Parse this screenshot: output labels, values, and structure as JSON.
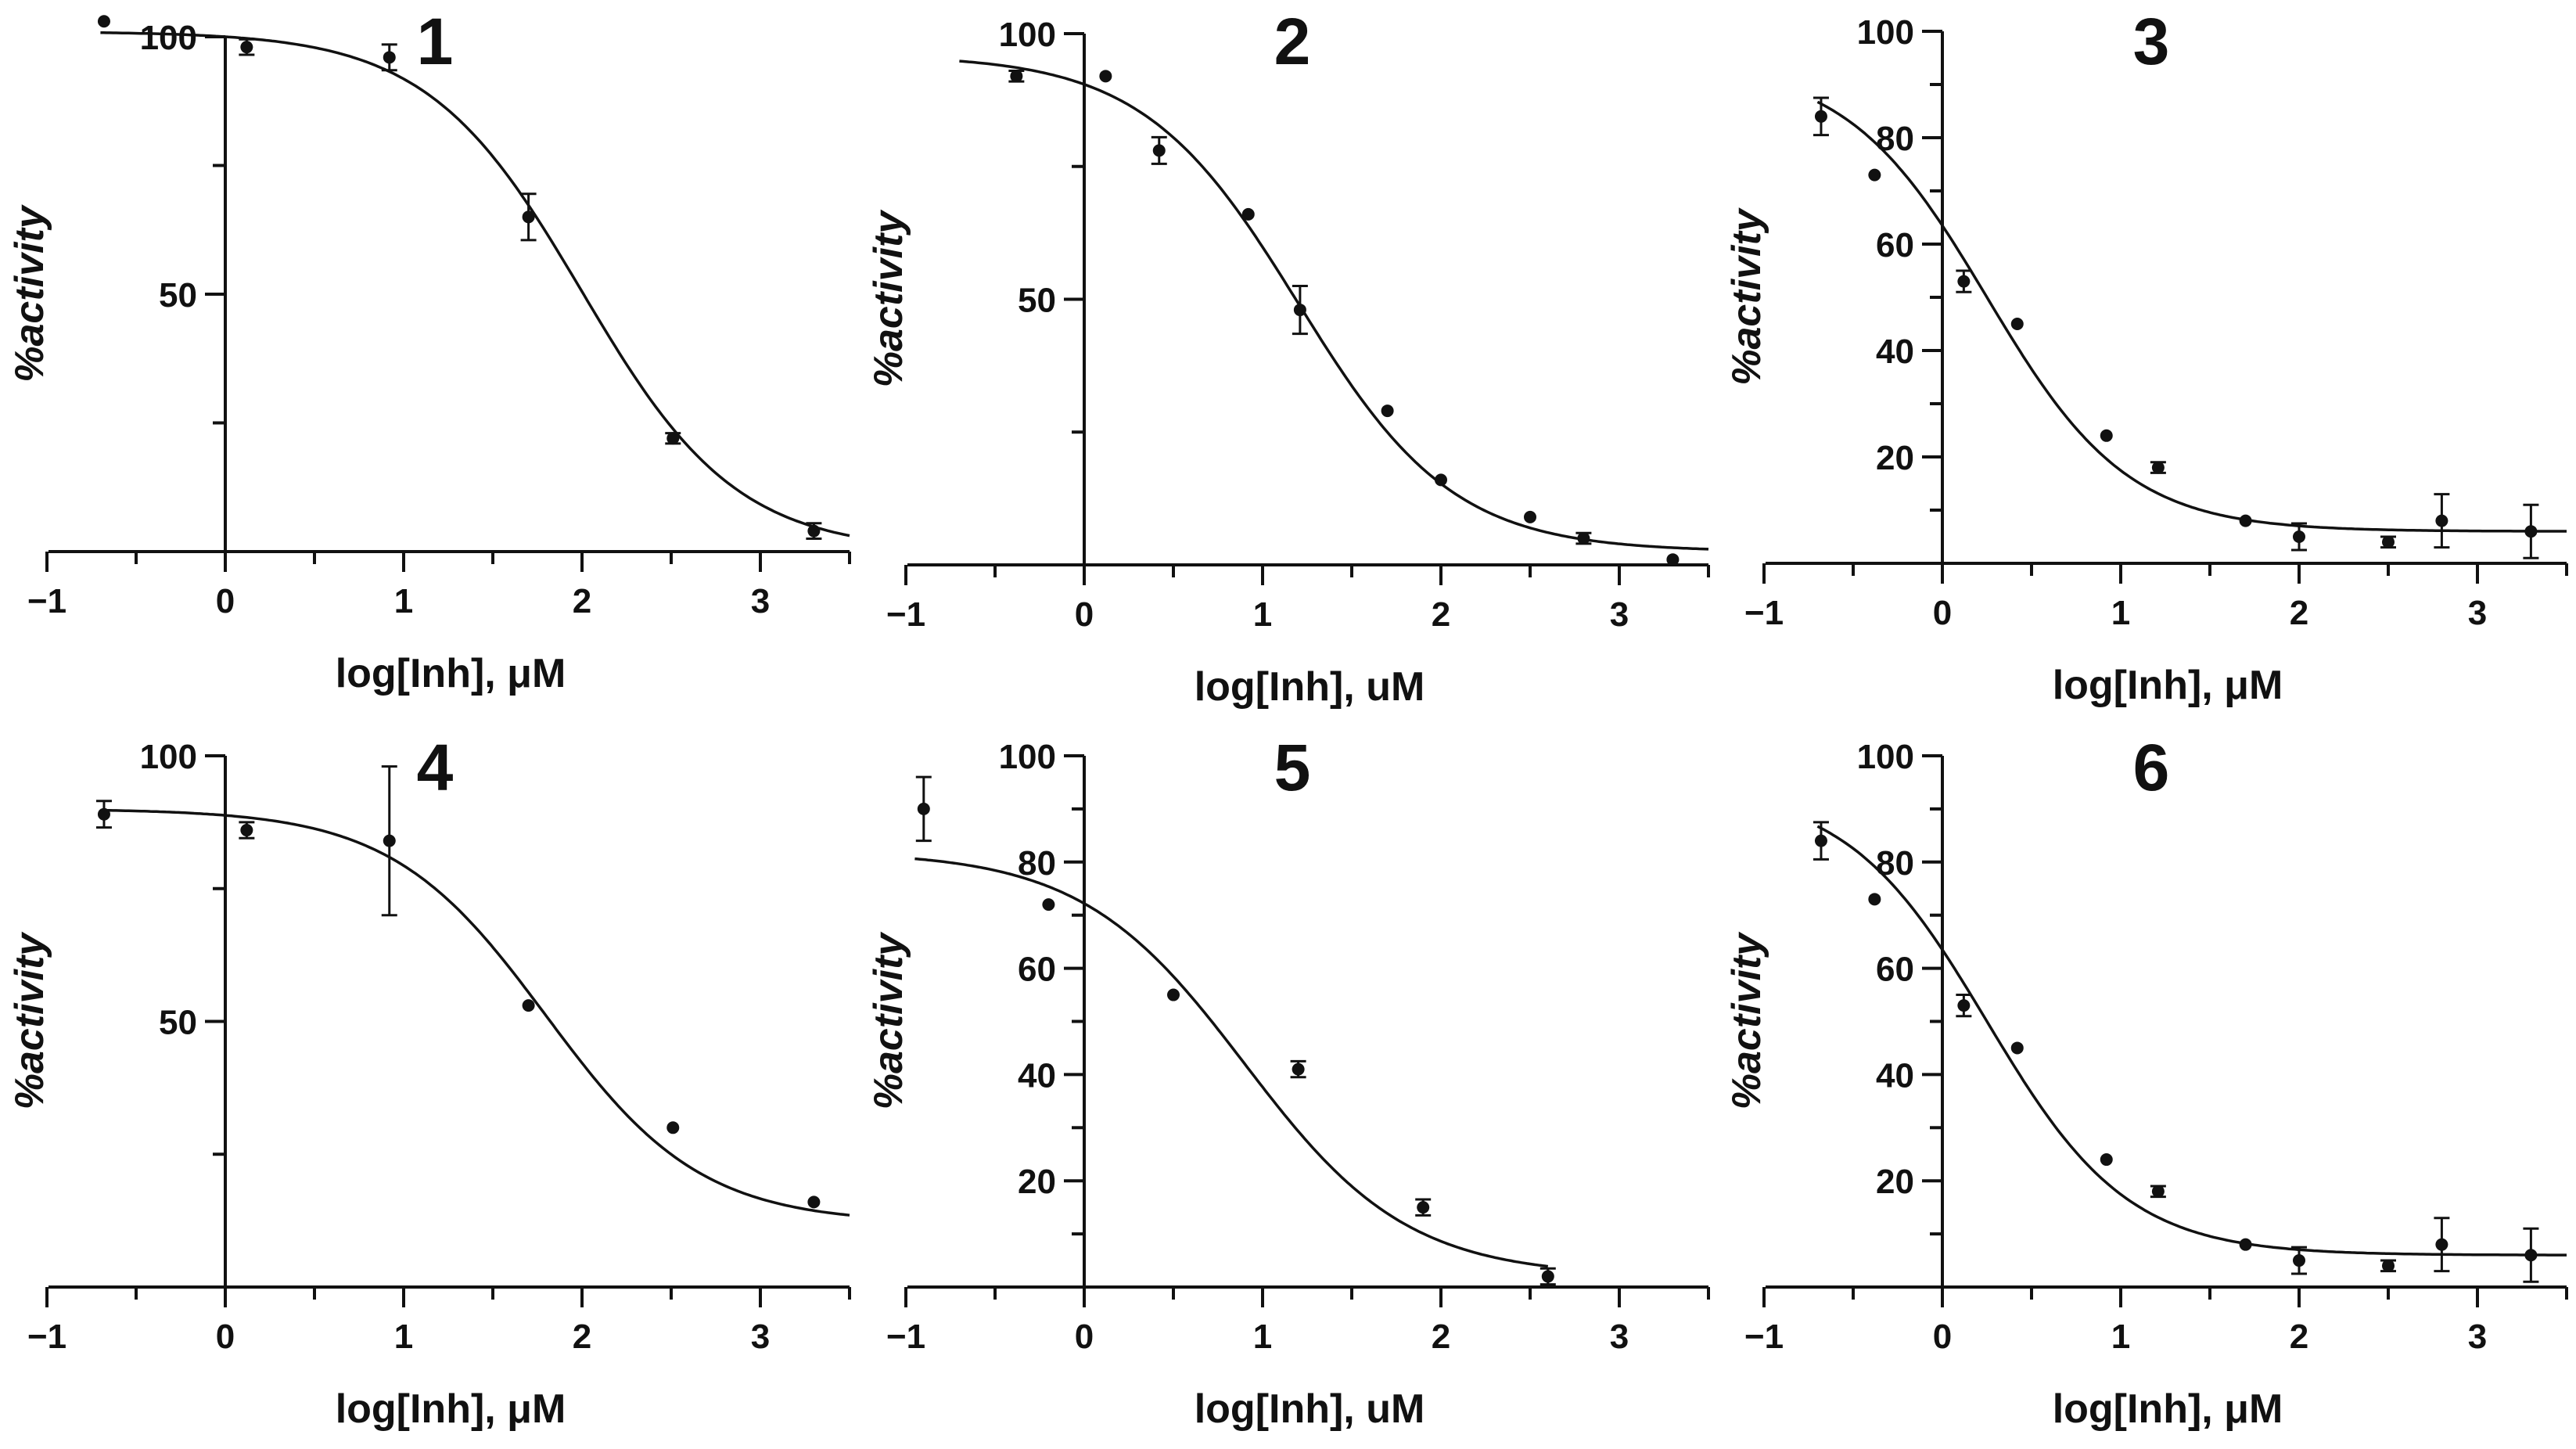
{
  "chart_data": [
    {
      "type": "scatter",
      "title": "1",
      "xlabel": "log[Inh], μM",
      "ylabel": "%activity",
      "xlim": [
        -1,
        3.5
      ],
      "ylim": [
        0,
        100
      ],
      "xticks": [
        -1,
        0,
        1,
        2,
        3
      ],
      "yticks": [
        50,
        100
      ],
      "points": [
        {
          "x": -0.68,
          "y": 103,
          "err": 0
        },
        {
          "x": 0.12,
          "y": 98,
          "err": 1.5
        },
        {
          "x": 0.92,
          "y": 96,
          "err": 2.5
        },
        {
          "x": 1.7,
          "y": 65,
          "err": 4.5
        },
        {
          "x": 2.51,
          "y": 22,
          "err": 1.0
        },
        {
          "x": 3.3,
          "y": 4,
          "err": 1.5
        }
      ],
      "fit": {
        "top": 101,
        "bottom": 0,
        "logIC50": 2.0,
        "hill": 1.0
      }
    },
    {
      "type": "scatter",
      "title": "2",
      "xlabel": "log[Inh], uM",
      "ylabel": "%activity",
      "xlim": [
        -1,
        3.5
      ],
      "ylim": [
        0,
        100
      ],
      "xticks": [
        -1,
        0,
        1,
        2,
        3
      ],
      "yticks": [
        50,
        100
      ],
      "points": [
        {
          "x": -0.38,
          "y": 92,
          "err": 1.0
        },
        {
          "x": 0.12,
          "y": 92,
          "err": 0
        },
        {
          "x": 0.42,
          "y": 78,
          "err": 2.5
        },
        {
          "x": 0.92,
          "y": 66,
          "err": 0
        },
        {
          "x": 1.21,
          "y": 48,
          "err": 4.5
        },
        {
          "x": 1.7,
          "y": 29,
          "err": 0
        },
        {
          "x": 2.0,
          "y": 16,
          "err": 0
        },
        {
          "x": 2.5,
          "y": 9,
          "err": 0
        },
        {
          "x": 2.8,
          "y": 5,
          "err": 1.0
        },
        {
          "x": 3.3,
          "y": 1,
          "err": 0
        }
      ],
      "fit": {
        "top": 96,
        "bottom": 2.5,
        "logIC50": 1.2,
        "hill": 1.0
      }
    },
    {
      "type": "scatter",
      "title": "3",
      "xlabel": "log[Inh], μM",
      "ylabel": "%activity",
      "xlim": [
        -1,
        3.5
      ],
      "ylim": [
        0,
        100
      ],
      "xticks": [
        -1,
        0,
        1,
        2,
        3
      ],
      "yticks": [
        20,
        40,
        60,
        80,
        100
      ],
      "points": [
        {
          "x": -0.68,
          "y": 84,
          "err": 3.5
        },
        {
          "x": -0.38,
          "y": 73,
          "err": 0
        },
        {
          "x": 0.12,
          "y": 53,
          "err": 2.0
        },
        {
          "x": 0.42,
          "y": 45,
          "err": 0
        },
        {
          "x": 0.92,
          "y": 24,
          "err": 0
        },
        {
          "x": 1.21,
          "y": 18,
          "err": 1.0
        },
        {
          "x": 1.7,
          "y": 8,
          "err": 0
        },
        {
          "x": 2.0,
          "y": 5,
          "err": 2.5
        },
        {
          "x": 2.5,
          "y": 4,
          "err": 1.0
        },
        {
          "x": 2.8,
          "y": 8,
          "err": 5.0
        },
        {
          "x": 3.3,
          "y": 6,
          "err": 5.0
        }
      ],
      "fit": {
        "top": 94,
        "bottom": 6,
        "logIC50": 0.25,
        "hill": 1.1
      }
    },
    {
      "type": "scatter",
      "title": "4",
      "xlabel": "log[Inh], μM",
      "ylabel": "%activity",
      "xlim": [
        -1,
        3.5
      ],
      "ylim": [
        0,
        100
      ],
      "xticks": [
        -1,
        0,
        1,
        2,
        3
      ],
      "yticks": [
        50,
        100
      ],
      "points": [
        {
          "x": -0.68,
          "y": 89,
          "err": 2.5
        },
        {
          "x": 0.12,
          "y": 86,
          "err": 1.5
        },
        {
          "x": 0.92,
          "y": 84,
          "err": 14
        },
        {
          "x": 1.7,
          "y": 53,
          "err": 0
        },
        {
          "x": 2.51,
          "y": 30,
          "err": 0
        },
        {
          "x": 3.3,
          "y": 16,
          "err": 0
        }
      ],
      "fit": {
        "top": 90,
        "bottom": 12,
        "logIC50": 1.8,
        "hill": 1.0
      }
    },
    {
      "type": "scatter",
      "title": "5",
      "xlabel": "log[Inh], uM",
      "ylabel": "%activity",
      "xlim": [
        -1,
        3.5
      ],
      "ylim": [
        0,
        100
      ],
      "xticks": [
        -1,
        0,
        1,
        2,
        3
      ],
      "yticks": [
        20,
        40,
        60,
        80,
        100
      ],
      "points": [
        {
          "x": -0.9,
          "y": 90,
          "err": 6.0
        },
        {
          "x": -0.2,
          "y": 72,
          "err": 0
        },
        {
          "x": 0.5,
          "y": 55,
          "err": 0
        },
        {
          "x": 1.2,
          "y": 41,
          "err": 1.5
        },
        {
          "x": 1.9,
          "y": 15,
          "err": 1.5
        },
        {
          "x": 2.6,
          "y": 2,
          "err": 1.5
        }
      ],
      "fit": {
        "top": 82,
        "bottom": 2,
        "logIC50": 0.9,
        "hill": 0.95
      },
      "fit_range": [
        -0.95,
        2.6
      ]
    },
    {
      "type": "scatter",
      "title": "6",
      "xlabel": "log[Inh], μM",
      "ylabel": "%activity",
      "xlim": [
        -1,
        3.5
      ],
      "ylim": [
        0,
        100
      ],
      "xticks": [
        -1,
        0,
        1,
        2,
        3
      ],
      "yticks": [
        20,
        40,
        60,
        80,
        100
      ],
      "points": [
        {
          "x": -0.68,
          "y": 84,
          "err": 3.5
        },
        {
          "x": -0.38,
          "y": 73,
          "err": 0
        },
        {
          "x": 0.12,
          "y": 53,
          "err": 2.0
        },
        {
          "x": 0.42,
          "y": 45,
          "err": 0
        },
        {
          "x": 0.92,
          "y": 24,
          "err": 0
        },
        {
          "x": 1.21,
          "y": 18,
          "err": 1.0
        },
        {
          "x": 1.7,
          "y": 8,
          "err": 0
        },
        {
          "x": 2.0,
          "y": 5,
          "err": 2.5
        },
        {
          "x": 2.5,
          "y": 4,
          "err": 1.0
        },
        {
          "x": 2.8,
          "y": 8,
          "err": 5.0
        },
        {
          "x": 3.3,
          "y": 6,
          "err": 5.0
        }
      ],
      "fit": {
        "top": 94,
        "bottom": 6,
        "logIC50": 0.25,
        "hill": 1.1
      }
    }
  ]
}
